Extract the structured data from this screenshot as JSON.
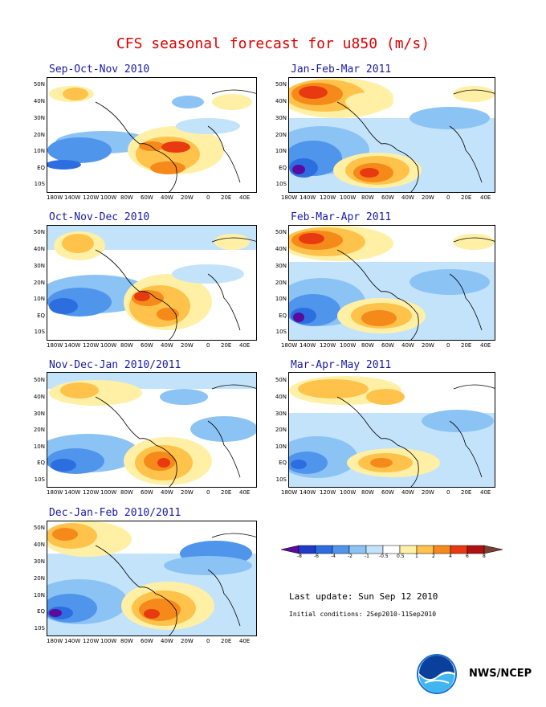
{
  "title": "CFS seasonal forecast for u850 (m/s)",
  "lat_labels": [
    "50N",
    "40N",
    "30N",
    "20N",
    "10N",
    "EQ",
    "10S"
  ],
  "lon_labels": [
    "180W",
    "140W",
    "120W",
    "100W",
    "80W",
    "60W",
    "40W",
    "20W",
    "0",
    "20E",
    "40E"
  ],
  "panels": [
    {
      "label": "Sep-Oct-Nov 2010"
    },
    {
      "label": "Jan-Feb-Mar 2011"
    },
    {
      "label": "Oct-Nov-Dec 2010"
    },
    {
      "label": "Feb-Mar-Apr 2011"
    },
    {
      "label": "Nov-Dec-Jan 2010/2011"
    },
    {
      "label": "Mar-Apr-May 2011"
    },
    {
      "label": "Dec-Jan-Feb 2010/2011"
    }
  ],
  "legend": {
    "ticks": [
      "-8",
      "-6",
      "-4",
      "-2",
      "-1",
      "-0.5",
      "0.5",
      "1",
      "2",
      "4",
      "6",
      "8"
    ],
    "colors": [
      "#5a0a9e",
      "#1e3cc8",
      "#2c6ee0",
      "#4f95ec",
      "#8cc3f5",
      "#c3e3fb",
      "#ffffff",
      "#fff0a6",
      "#ffc24a",
      "#f58a1a",
      "#e83a10",
      "#b01010",
      "#7a4030"
    ]
  },
  "last_update": "Last update: Sun Sep 12 2010",
  "initial_conditions": "Initial conditions: 2Sep2010-11Sep2010",
  "credit": "NWS/NCEP",
  "logo_icon": "noaa-logo"
}
